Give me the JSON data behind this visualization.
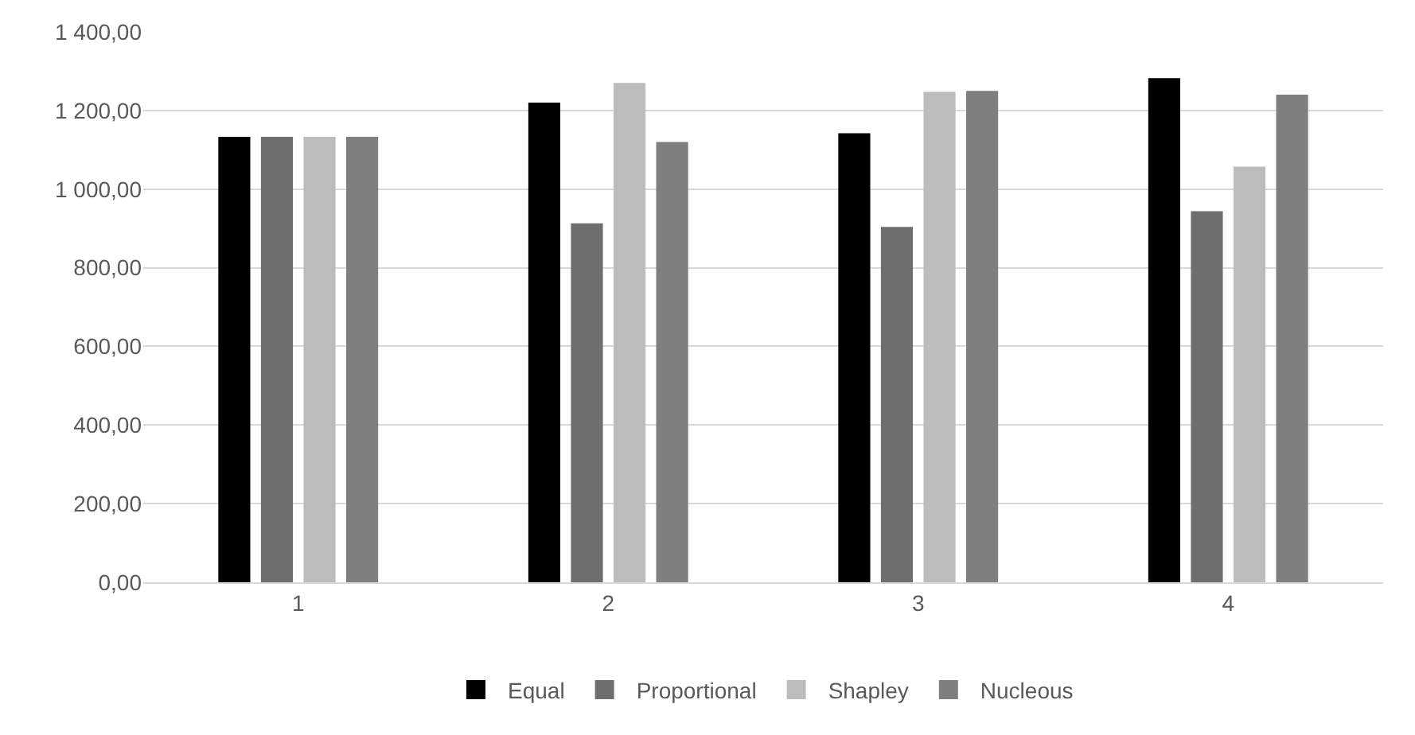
{
  "chart_data": {
    "type": "bar",
    "categories": [
      "1",
      "2",
      "3",
      "4"
    ],
    "series": [
      {
        "name": "Equal",
        "color": "#000000",
        "values": [
          1133,
          1220,
          1142,
          1282
        ]
      },
      {
        "name": "Proportional",
        "color": "#6e6e6e",
        "values": [
          1133,
          913,
          904,
          944
        ]
      },
      {
        "name": "Shapley",
        "color": "#bcbcbc",
        "values": [
          1133,
          1270,
          1247,
          1057
        ]
      },
      {
        "name": "Nucleous",
        "color": "#7f7f7f",
        "values": [
          1133,
          1120,
          1250,
          1240
        ]
      }
    ],
    "ylim": [
      0,
      1400
    ],
    "yticks": [
      {
        "value": 0,
        "label": "0,00"
      },
      {
        "value": 200,
        "label": "200,00"
      },
      {
        "value": 400,
        "label": "400,00"
      },
      {
        "value": 600,
        "label": "600,00"
      },
      {
        "value": 800,
        "label": "800,00"
      },
      {
        "value": 1000,
        "label": "1 000,00"
      },
      {
        "value": 1200,
        "label": "1 200,00"
      },
      {
        "value": 1400,
        "label": "1 400,00"
      }
    ],
    "grid": "y",
    "legend": "bottom"
  }
}
